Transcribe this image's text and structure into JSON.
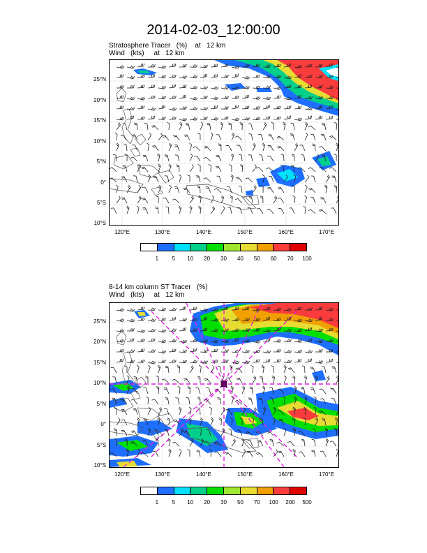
{
  "title": "2014-02-03_12:00:00",
  "panels": [
    {
      "subtitle1": "Stratosphere Tracer   (%)    at   12 km",
      "subtitle2": "Wind   (kts)     at   12 km",
      "lat_labels": [
        "25°N",
        "20°N",
        "15°N",
        "10°N",
        "5°N",
        "0°",
        "5°S",
        "10°S"
      ],
      "lon_labels": [
        "120°E",
        "130°E",
        "140°E",
        "150°E",
        "160°E",
        "170°E"
      ],
      "colorbar_labels": [
        "1",
        "5",
        "10",
        "20",
        "30",
        "40",
        "50",
        "60",
        "70",
        "100"
      ],
      "colorbar_colors": [
        "#ffffff",
        "#1e6fff",
        "#00e0ff",
        "#00d08a",
        "#00e000",
        "#a0e632",
        "#e6dc32",
        "#f0a000",
        "#fa3c3c",
        "#e00000"
      ]
    },
    {
      "subtitle1": "8-14 km column ST Tracer   (%)",
      "subtitle2": "Wind   (kts)     at   12 km",
      "lat_labels": [
        "25°N",
        "20°N",
        "15°N",
        "10°N",
        "5°N",
        "0°",
        "5°S",
        "10°S"
      ],
      "lon_labels": [
        "120°E",
        "130°E",
        "140°E",
        "150°E",
        "160°E",
        "170°E"
      ],
      "colorbar_labels": [
        "1",
        "5",
        "10",
        "20",
        "30",
        "50",
        "70",
        "100",
        "200",
        "500"
      ],
      "colorbar_colors": [
        "#ffffff",
        "#1e6fff",
        "#00e0ff",
        "#00d08a",
        "#00e000",
        "#a0e632",
        "#e6dc32",
        "#f0a000",
        "#fa3c3c",
        "#e00000"
      ]
    }
  ]
}
